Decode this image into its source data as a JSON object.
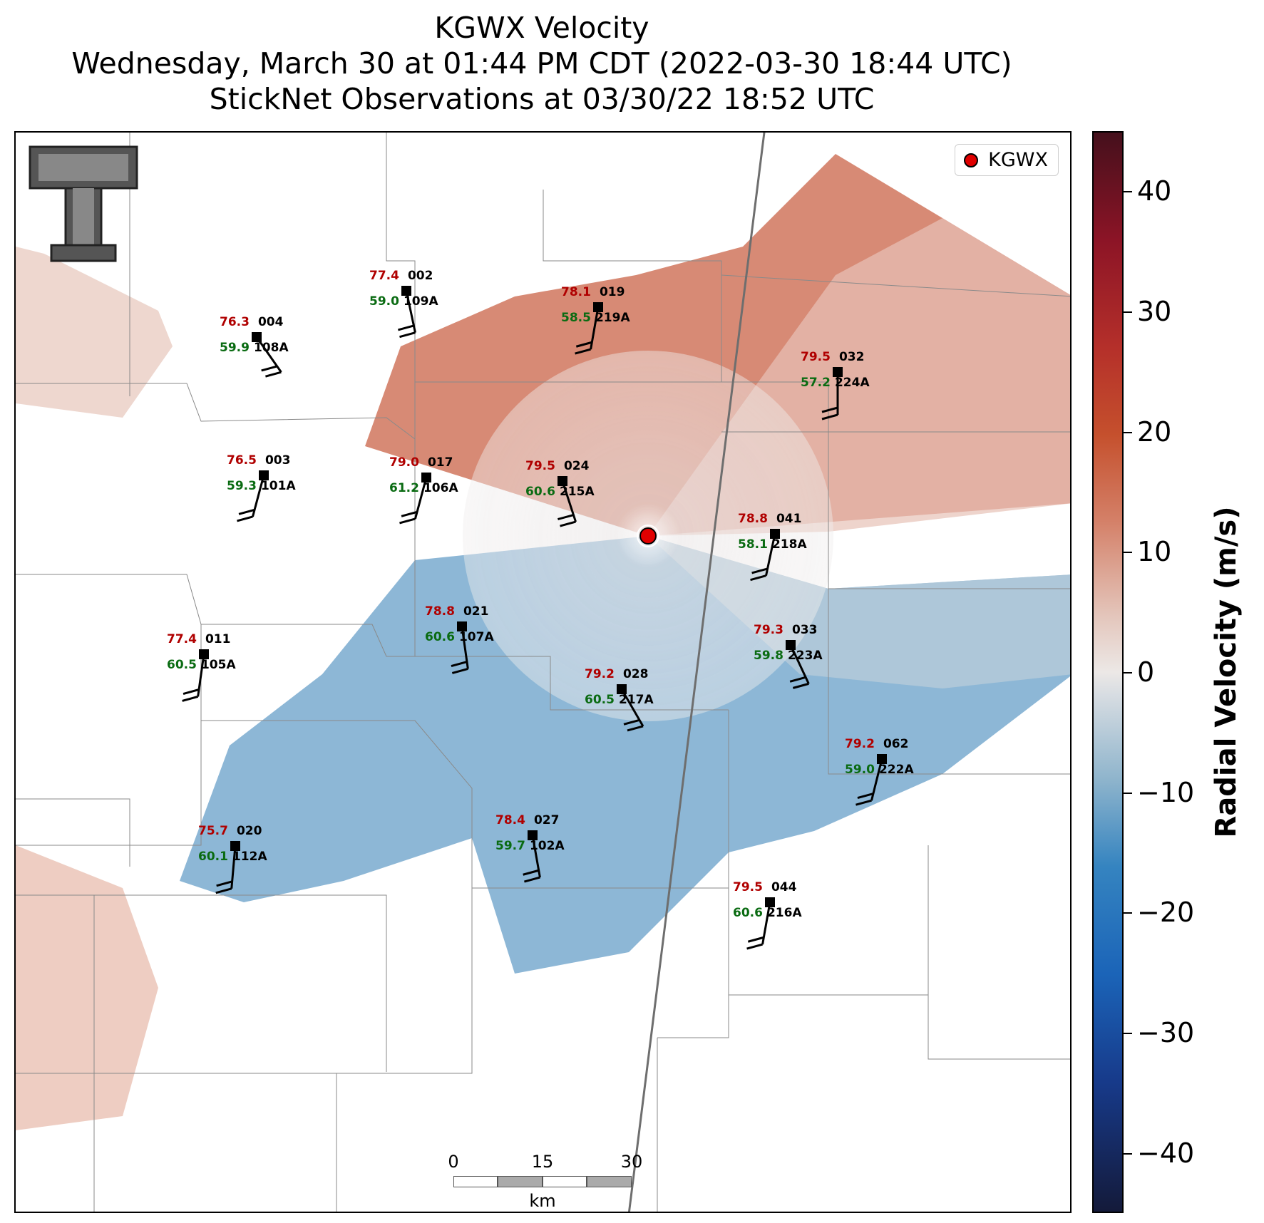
{
  "title": {
    "line1": "KGWX Velocity",
    "line2": "Wednesday, March 30 at 01:44 PM CDT (2022-03-30 18:44 UTC)",
    "line3": "StickNet Observations at 03/30/22 18:52 UTC"
  },
  "legend": {
    "label": "KGWX"
  },
  "colorbar": {
    "label": "Radial Velocity (m/s)",
    "ticks": [
      "40",
      "30",
      "20",
      "10",
      "0",
      "−10",
      "−20",
      "−30",
      "−40"
    ],
    "colors": {
      "max": "#45101c",
      "positive": "#c5502d",
      "zero": "#ece8e6",
      "negative": "#3584c0",
      "min": "#141a3a"
    }
  },
  "scale_bar": {
    "labels": [
      "0",
      "15",
      "30"
    ],
    "unit": "km"
  },
  "logo": {
    "name": "texas-tech-double-t-logo"
  },
  "stations": [
    {
      "id": "002",
      "probe": "109A",
      "temp": "77.4",
      "dew": "59.0"
    },
    {
      "id": "019",
      "probe": "219A",
      "temp": "78.1",
      "dew": "58.5"
    },
    {
      "id": "004",
      "probe": "108A",
      "temp": "76.3",
      "dew": "59.9"
    },
    {
      "id": "032",
      "probe": "224A",
      "temp": "79.5",
      "dew": "57.2"
    },
    {
      "id": "003",
      "probe": "101A",
      "temp": "76.5",
      "dew": "59.3"
    },
    {
      "id": "017",
      "probe": "106A",
      "temp": "79.0",
      "dew": "61.2"
    },
    {
      "id": "024",
      "probe": "215A",
      "temp": "79.5",
      "dew": "60.6"
    },
    {
      "id": "041",
      "probe": "218A",
      "temp": "78.8",
      "dew": "58.1"
    },
    {
      "id": "021",
      "probe": "107A",
      "temp": "78.8",
      "dew": "60.6"
    },
    {
      "id": "011",
      "probe": "105A",
      "temp": "77.4",
      "dew": "60.5"
    },
    {
      "id": "033",
      "probe": "223A",
      "temp": "79.3",
      "dew": "59.8"
    },
    {
      "id": "028",
      "probe": "217A",
      "temp": "79.2",
      "dew": "60.5"
    },
    {
      "id": "062",
      "probe": "222A",
      "temp": "79.2",
      "dew": "59.0"
    },
    {
      "id": "027",
      "probe": "102A",
      "temp": "78.4",
      "dew": "59.7"
    },
    {
      "id": "020",
      "probe": "112A",
      "temp": "75.7",
      "dew": "60.1"
    },
    {
      "id": "044",
      "probe": "216A",
      "temp": "79.5",
      "dew": "60.6"
    }
  ]
}
